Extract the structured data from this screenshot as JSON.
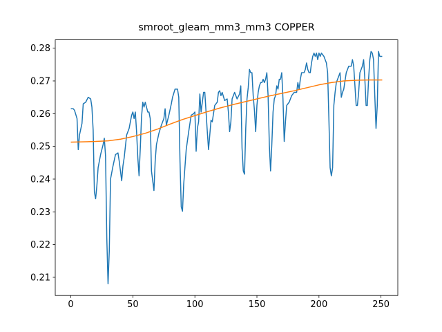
{
  "chart_data": {
    "type": "line",
    "title": "smroot_gleam_mm3_mm3 COPPER",
    "xlim": [
      -12.55,
      263.55
    ],
    "ylim": [
      0.20445,
      0.28255
    ],
    "xticks": [
      0,
      50,
      100,
      150,
      200,
      250
    ],
    "yticks": [
      0.21,
      0.22,
      0.23,
      0.24,
      0.25,
      0.26,
      0.27,
      0.28
    ],
    "grid": false,
    "series": [
      {
        "color": "#1f77b4",
        "x": [
          0,
          2,
          3,
          5,
          6,
          7,
          9,
          10,
          12,
          14,
          16,
          17,
          18,
          19,
          20,
          21,
          22,
          24,
          25,
          26,
          27,
          28,
          29,
          30,
          31,
          32,
          34,
          36,
          38,
          39,
          40,
          41,
          42,
          43,
          45,
          47,
          49,
          50,
          51,
          52,
          53,
          54,
          55,
          56,
          57,
          58,
          59,
          60,
          62,
          63,
          64,
          65,
          66,
          67,
          68,
          69,
          71,
          73,
          75,
          76,
          77,
          79,
          81,
          82,
          84,
          86,
          87,
          88,
          89,
          90,
          91,
          93,
          95,
          97,
          99,
          100,
          101,
          102,
          103,
          104,
          105,
          106,
          107,
          108,
          109,
          110,
          111,
          112,
          113,
          114,
          116,
          118,
          119,
          120,
          121,
          122,
          124,
          126,
          127,
          128,
          129,
          130,
          132,
          134,
          136,
          137,
          138,
          139,
          140,
          141,
          142,
          143,
          144,
          145,
          146,
          147,
          148,
          149,
          150,
          151,
          152,
          153,
          154,
          155,
          156,
          157,
          158,
          159,
          160,
          161,
          162,
          163,
          164,
          165,
          166,
          167,
          168,
          169,
          170,
          171,
          172,
          173,
          174,
          176,
          178,
          180,
          182,
          183,
          184,
          185,
          186,
          188,
          189,
          190,
          191,
          192,
          193,
          194,
          195,
          196,
          197,
          198,
          199,
          200,
          201,
          202,
          203,
          204,
          206,
          207,
          208,
          209,
          210,
          211,
          212,
          213,
          214,
          215,
          216,
          217,
          218,
          219,
          220,
          222,
          224,
          226,
          227,
          228,
          229,
          230,
          231,
          232,
          233,
          235,
          236,
          237,
          238,
          239,
          240,
          241,
          242,
          243,
          244,
          245,
          246,
          247,
          248,
          249,
          251
        ],
        "values": [
          0.2615,
          0.2615,
          0.261,
          0.2585,
          0.249,
          0.2535,
          0.257,
          0.263,
          0.2635,
          0.265,
          0.2645,
          0.262,
          0.255,
          0.236,
          0.234,
          0.238,
          0.2435,
          0.2475,
          0.249,
          0.2505,
          0.2525,
          0.247,
          0.222,
          0.208,
          0.218,
          0.24,
          0.244,
          0.2475,
          0.248,
          0.2455,
          0.2425,
          0.2395,
          0.244,
          0.2465,
          0.2535,
          0.2555,
          0.2595,
          0.2605,
          0.2585,
          0.2605,
          0.2545,
          0.2465,
          0.241,
          0.2495,
          0.259,
          0.2635,
          0.262,
          0.2635,
          0.2605,
          0.2605,
          0.2585,
          0.2425,
          0.2395,
          0.2365,
          0.2455,
          0.2505,
          0.254,
          0.2565,
          0.2585,
          0.2615,
          0.2565,
          0.2595,
          0.263,
          0.265,
          0.2675,
          0.2675,
          0.265,
          0.2455,
          0.2315,
          0.2302,
          0.2385,
          0.249,
          0.2545,
          0.2595,
          0.26,
          0.2605,
          0.2485,
          0.2555,
          0.2575,
          0.266,
          0.2605,
          0.2635,
          0.2665,
          0.2665,
          0.2605,
          0.2545,
          0.249,
          0.2535,
          0.258,
          0.2575,
          0.2625,
          0.2635,
          0.2665,
          0.267,
          0.2655,
          0.2665,
          0.264,
          0.2645,
          0.2605,
          0.2545,
          0.2575,
          0.2645,
          0.2665,
          0.2645,
          0.266,
          0.2685,
          0.2495,
          0.2425,
          0.2415,
          0.2555,
          0.2645,
          0.268,
          0.2735,
          0.2725,
          0.2725,
          0.2655,
          0.261,
          0.2545,
          0.2625,
          0.2665,
          0.2685,
          0.2695,
          0.2695,
          0.2705,
          0.2695,
          0.2705,
          0.2725,
          0.2655,
          0.2505,
          0.2425,
          0.2505,
          0.2605,
          0.2645,
          0.2655,
          0.2685,
          0.2675,
          0.2705,
          0.2705,
          0.2725,
          0.2645,
          0.2515,
          0.2575,
          0.2625,
          0.2635,
          0.2655,
          0.2665,
          0.2665,
          0.2695,
          0.2675,
          0.2705,
          0.2725,
          0.2725,
          0.2735,
          0.2755,
          0.2735,
          0.2725,
          0.2725,
          0.2755,
          0.2775,
          0.2785,
          0.2775,
          0.2785,
          0.2765,
          0.2785,
          0.2775,
          0.2785,
          0.278,
          0.2775,
          0.2755,
          0.2725,
          0.2585,
          0.2435,
          0.241,
          0.2435,
          0.2625,
          0.2665,
          0.2695,
          0.2705,
          0.2715,
          0.2725,
          0.265,
          0.2665,
          0.2675,
          0.2725,
          0.2745,
          0.2745,
          0.2765,
          0.2745,
          0.2685,
          0.2625,
          0.2625,
          0.2665,
          0.2725,
          0.2745,
          0.2765,
          0.2705,
          0.2625,
          0.2625,
          0.2705,
          0.2765,
          0.279,
          0.2785,
          0.2765,
          0.2655,
          0.2555,
          0.2625,
          0.279,
          0.2775,
          0.2775
        ]
      },
      {
        "color": "#ff7f0e",
        "x": [
          0,
          20,
          30,
          40,
          50,
          60,
          70,
          80,
          90,
          100,
          110,
          120,
          130,
          140,
          150,
          160,
          170,
          180,
          190,
          200,
          210,
          220,
          230,
          240,
          251
        ],
        "values": [
          0.2513,
          0.2515,
          0.2517,
          0.2522,
          0.253,
          0.254,
          0.2553,
          0.2568,
          0.2582,
          0.2594,
          0.2606,
          0.2617,
          0.2627,
          0.2636,
          0.2645,
          0.2654,
          0.2662,
          0.267,
          0.2679,
          0.2688,
          0.2695,
          0.27,
          0.2702,
          0.2703,
          0.2703
        ]
      }
    ]
  }
}
